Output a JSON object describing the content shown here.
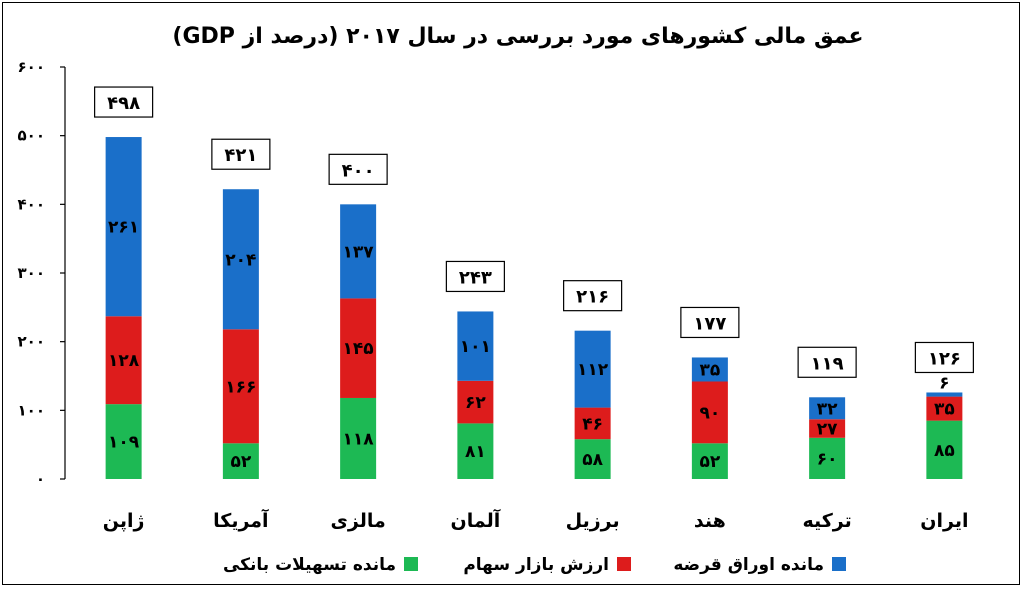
{
  "chart_data": {
    "type": "bar",
    "stacked": true,
    "title": "عمق مالی کشورهای مورد بررسی در سال ۲۰۱۷ (درصد از GDP)",
    "categories": [
      "ژاپن",
      "آمریکا",
      "مالزی",
      "آلمان",
      "برزیل",
      "هند",
      "ترکیه",
      "ایران"
    ],
    "series": [
      {
        "name": "مانده تسهیلات بانکی",
        "color": "#1db954",
        "values": [
          109,
          52,
          118,
          81,
          58,
          52,
          60,
          85
        ],
        "labels": [
          "۱۰۹",
          "۵۲",
          "۱۱۸",
          "۸۱",
          "۵۸",
          "۵۲",
          "۶۰",
          "۸۵"
        ]
      },
      {
        "name": "ارزش بازار سهام",
        "color": "#dd1c1c",
        "values": [
          128,
          166,
          145,
          62,
          46,
          90,
          27,
          35
        ],
        "labels": [
          "۱۲۸",
          "۱۶۶",
          "۱۴۵",
          "۶۲",
          "۴۶",
          "۹۰",
          "۲۷",
          "۳۵"
        ]
      },
      {
        "name": "مانده اوراق قرضه",
        "color": "#1a6fc9",
        "values": [
          261,
          204,
          137,
          101,
          112,
          35,
          32,
          6
        ],
        "labels": [
          "۲۶۱",
          "۲۰۴",
          "۱۳۷",
          "۱۰۱",
          "۱۱۲",
          "۳۵",
          "۳۲",
          "۶"
        ]
      }
    ],
    "totals": [
      498,
      421,
      400,
      243,
      216,
      177,
      119,
      126
    ],
    "total_labels": [
      "۴۹۸",
      "۴۲۱",
      "۴۰۰",
      "۲۴۳",
      "۲۱۶",
      "۱۷۷",
      "۱۱۹",
      "۱۲۶"
    ],
    "ylim": [
      0,
      600
    ],
    "yticks": [
      0,
      100,
      200,
      300,
      400,
      500,
      600
    ],
    "ytick_labels": [
      "۰",
      "۱۰۰",
      "۲۰۰",
      "۳۰۰",
      "۴۰۰",
      "۵۰۰",
      "۶۰۰"
    ],
    "grid": false,
    "legend_position": "bottom",
    "legend_order": [
      2,
      1,
      0
    ]
  }
}
